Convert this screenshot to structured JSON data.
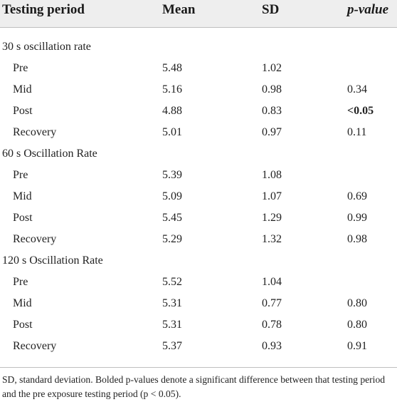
{
  "header": {
    "period": "Testing period",
    "mean": "Mean",
    "sd": "SD",
    "pvalue": "p-value"
  },
  "groups": [
    {
      "title": "30 s oscillation rate",
      "rows": [
        {
          "period": "Pre",
          "mean": "5.48",
          "sd": "1.02",
          "p": ""
        },
        {
          "period": "Mid",
          "mean": "5.16",
          "sd": "0.98",
          "p": "0.34"
        },
        {
          "period": "Post",
          "mean": "4.88",
          "sd": "0.83",
          "p": "<0.05",
          "bold": true
        },
        {
          "period": "Recovery",
          "mean": "5.01",
          "sd": "0.97",
          "p": "0.11"
        }
      ]
    },
    {
      "title": "60 s Oscillation Rate",
      "rows": [
        {
          "period": "Pre",
          "mean": "5.39",
          "sd": "1.08",
          "p": ""
        },
        {
          "period": "Mid",
          "mean": "5.09",
          "sd": "1.07",
          "p": "0.69"
        },
        {
          "period": "Post",
          "mean": "5.45",
          "sd": "1.29",
          "p": "0.99"
        },
        {
          "period": "Recovery",
          "mean": "5.29",
          "sd": "1.32",
          "p": "0.98"
        }
      ]
    },
    {
      "title": "120 s Oscillation Rate",
      "rows": [
        {
          "period": "Pre",
          "mean": "5.52",
          "sd": "1.04",
          "p": ""
        },
        {
          "period": "Mid",
          "mean": "5.31",
          "sd": "0.77",
          "p": "0.80"
        },
        {
          "period": "Post",
          "mean": "5.31",
          "sd": "0.78",
          "p": "0.80"
        },
        {
          "period": "Recovery",
          "mean": "5.37",
          "sd": "0.93",
          "p": "0.91"
        }
      ]
    }
  ],
  "footnote": "SD, standard deviation. Bolded p-values denote a significant difference between that testing period and the pre exposure testing period (p < 0.05)."
}
